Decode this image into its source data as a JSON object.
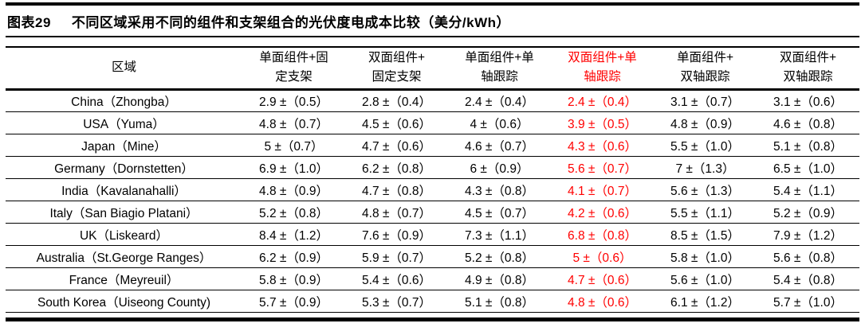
{
  "title": {
    "label": "图表29",
    "text": "不同区域采用不同的组件和支架组合的光伏度电成本比较（美分/kWh）"
  },
  "colors": {
    "highlight_red": "#ff0000",
    "text": "#000000",
    "background": "#ffffff"
  },
  "table": {
    "region_header": "区域",
    "columns": [
      {
        "label": "单面组件+固\n定支架",
        "highlight": false
      },
      {
        "label": "双面组件+\n固定支架",
        "highlight": false
      },
      {
        "label": "单面组件+单\n轴跟踪",
        "highlight": false
      },
      {
        "label": "双面组件+单\n轴跟踪",
        "highlight": true
      },
      {
        "label": "单面组件+\n双轴跟踪",
        "highlight": false
      },
      {
        "label": "双面组件+\n双轴跟踪",
        "highlight": false
      }
    ],
    "rows": [
      {
        "region": "China（Zhongba）",
        "values": [
          "2.9 ±（0.5）",
          "2.8 ±（0.4）",
          "2.4 ±（0.4）",
          "2.4 ±（0.4）",
          "3.1 ±（0.7）",
          "3.1 ±（0.6）"
        ]
      },
      {
        "region": "USA（Yuma）",
        "values": [
          "4.8 ±（0.7）",
          "4.5 ±（0.6）",
          "4 ±（0.6）",
          "3.9 ±（0.5）",
          "4.8 ±（0.9）",
          "4.6 ±（0.8）"
        ]
      },
      {
        "region": "Japan（Mine）",
        "values": [
          "5 ±（0.7）",
          "4.7 ±（0.6）",
          "4.6 ±（0.7）",
          "4.3 ±（0.6）",
          "5.5 ±（1.0）",
          "5.1 ±（0.8）"
        ]
      },
      {
        "region": "Germany（Dornstetten）",
        "values": [
          "6.9 ±（1.0）",
          "6.2 ±（0.8）",
          "6 ±（0.9）",
          "5.6 ±（0.7）",
          "7 ±（1.3）",
          "6.5 ±（1.0）"
        ]
      },
      {
        "region": "India（Kavalanahalli）",
        "values": [
          "4.8 ±（0.9）",
          "4.7 ±（0.8）",
          "4.3 ±（0.8）",
          "4.1 ±（0.7）",
          "5.6 ±（1.3）",
          "5.4 ±（1.1）"
        ]
      },
      {
        "region": "Italy（San Biagio Platani）",
        "values": [
          "5.2 ±（0.8）",
          "4.8 ±（0.7）",
          "4.5 ±（0.7）",
          "4.2 ±（0.6）",
          "5.5 ±（1.1）",
          "5.2 ±（0.9）"
        ]
      },
      {
        "region": "UK（Liskeard）",
        "values": [
          "8.4 ±（1.2）",
          "7.6 ±（0.9）",
          "7.3 ±（1.1）",
          "6.8 ±（0.8）",
          "8.5 ±（1.5）",
          "7.9 ±（1.2）"
        ]
      },
      {
        "region": "Australia（St.George Ranges）",
        "values": [
          "6.2 ±（0.9）",
          "5.9 ±（0.7）",
          "5.2 ±（0.8）",
          "5 ±（0.6）",
          "5.8 ±（1.0）",
          "5.6 ±（0.8）"
        ]
      },
      {
        "region": "France（Meyreuil）",
        "values": [
          "5.8 ±（0.9）",
          "5.4 ±（0.6）",
          "4.9 ±（0.8）",
          "4.7 ±（0.6）",
          "5.6 ±（1.0）",
          "5.4 ±（0.8）"
        ]
      },
      {
        "region": "South Korea（Uiseong County)",
        "values": [
          "5.7 ±（0.9）",
          "5.3 ±（0.7）",
          "5.1 ±（0.8）",
          "4.8 ±（0.6）",
          "6.1 ±（1.2）",
          "5.7 ±（1.0）"
        ]
      }
    ]
  }
}
